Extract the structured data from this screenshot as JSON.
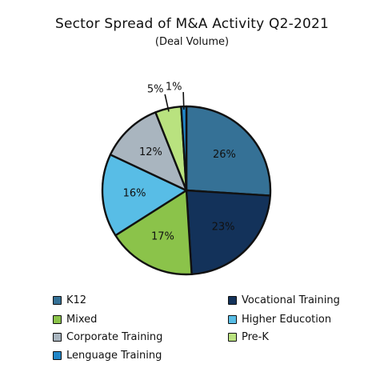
{
  "chart_data": {
    "type": "pie",
    "title": "Sector Spread of M&A Activity Q2-2021",
    "subtitle": "(Deal Volume)",
    "legend_placement": "bottom",
    "slices": [
      {
        "label": "K12",
        "value": 26,
        "display": "26%",
        "color": "#357196"
      },
      {
        "label": "Vocational Training",
        "value": 23,
        "display": "23%",
        "color": "#13325a"
      },
      {
        "label": "Mixed",
        "value": 17,
        "display": "17%",
        "color": "#8bc34a"
      },
      {
        "label": "Higher Education",
        "value": 16,
        "display": "16%",
        "color": "#58bde6"
      },
      {
        "label": "Corporate Training",
        "value": 12,
        "display": "12%",
        "color": "#a9b5bf"
      },
      {
        "label": "Pre-K",
        "value": 5,
        "display": "5%",
        "color": "#b9e27f"
      },
      {
        "label": "Language Training",
        "value": 1,
        "display": "1%",
        "color": "#2186c7"
      }
    ],
    "legend": [
      {
        "label": "K12",
        "color": "#357196"
      },
      {
        "label": "Vocational Training",
        "color": "#13325a"
      },
      {
        "label": "Mixed",
        "color": "#8bc34a"
      },
      {
        "label": "Higher Educotion",
        "color": "#58bde6"
      },
      {
        "label": "Corporate Training",
        "color": "#a9b5bf"
      },
      {
        "label": "Pre-K",
        "color": "#b9e27f"
      },
      {
        "label": "Lenguage Training",
        "color": "#2186c7"
      }
    ]
  }
}
